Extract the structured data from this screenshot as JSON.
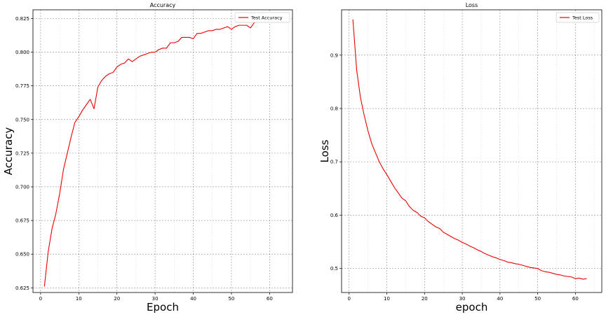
{
  "chart_data": [
    {
      "type": "line",
      "title": "Accuracy",
      "xlabel": "Epoch",
      "ylabel": "Accuracy",
      "xlim": [
        -2,
        66
      ],
      "ylim": [
        0.6215,
        0.8315
      ],
      "xticks": [
        0,
        10,
        20,
        30,
        40,
        50,
        60
      ],
      "xtick_labels": [
        "0",
        "10",
        "20",
        "30",
        "40",
        "50",
        "60"
      ],
      "yticks": [
        0.625,
        0.65,
        0.675,
        0.7,
        0.725,
        0.75,
        0.775,
        0.8,
        0.825
      ],
      "ytick_labels": [
        "0.625",
        "0.650",
        "0.675",
        "0.700",
        "0.725",
        "0.750",
        "0.775",
        "0.800",
        "0.825"
      ],
      "grid": true,
      "legend_position": "top-right",
      "series": [
        {
          "name": "Test Accuracy",
          "color": "#ee0000",
          "x": [
            1,
            2,
            3,
            4,
            5,
            6,
            7,
            8,
            9,
            10,
            11,
            12,
            13,
            14,
            15,
            16,
            17,
            18,
            19,
            20,
            21,
            22,
            23,
            24,
            25,
            26,
            27,
            28,
            29,
            30,
            31,
            32,
            33,
            34,
            35,
            36,
            37,
            38,
            39,
            40,
            41,
            42,
            43,
            44,
            45,
            46,
            47,
            48,
            49,
            50,
            51,
            52,
            53,
            54,
            55,
            56,
            57,
            58,
            59,
            60,
            61,
            62,
            63
          ],
          "values": [
            0.626,
            0.652,
            0.669,
            0.68,
            0.695,
            0.713,
            0.725,
            0.737,
            0.748,
            0.752,
            0.757,
            0.761,
            0.765,
            0.758,
            0.774,
            0.779,
            0.782,
            0.784,
            0.785,
            0.789,
            0.791,
            0.792,
            0.795,
            0.793,
            0.795,
            0.797,
            0.798,
            0.799,
            0.8,
            0.8,
            0.802,
            0.803,
            0.803,
            0.807,
            0.807,
            0.808,
            0.811,
            0.811,
            0.811,
            0.81,
            0.814,
            0.814,
            0.815,
            0.816,
            0.816,
            0.817,
            0.817,
            0.818,
            0.819,
            0.817,
            0.819,
            0.82,
            0.82,
            0.82,
            0.818,
            0.822,
            0.823,
            0.824,
            0.826,
            0.824,
            0.824,
            0.826,
            0.824
          ]
        }
      ]
    },
    {
      "type": "line",
      "title": "Loss",
      "xlabel": "epoch",
      "ylabel": "Loss",
      "xlim": [
        -2,
        67
      ],
      "ylim": [
        0.455,
        0.985
      ],
      "xticks": [
        0,
        10,
        20,
        30,
        40,
        50,
        60
      ],
      "xtick_labels": [
        "0",
        "10",
        "20",
        "30",
        "40",
        "50",
        "60"
      ],
      "yticks": [
        0.5,
        0.6,
        0.7,
        0.8,
        0.9
      ],
      "ytick_labels": [
        "0.5",
        "0.6",
        "0.7",
        "0.8",
        "0.9"
      ],
      "grid": true,
      "legend_position": "top-right",
      "series": [
        {
          "name": "Test Loss",
          "color": "#ee0000",
          "x": [
            1,
            2,
            3,
            4,
            5,
            6,
            7,
            8,
            9,
            10,
            11,
            12,
            13,
            14,
            15,
            16,
            17,
            18,
            19,
            20,
            21,
            22,
            23,
            24,
            25,
            26,
            27,
            28,
            29,
            30,
            31,
            32,
            33,
            34,
            35,
            36,
            37,
            38,
            39,
            40,
            41,
            42,
            43,
            44,
            45,
            46,
            47,
            48,
            49,
            50,
            51,
            52,
            53,
            54,
            55,
            56,
            57,
            58,
            59,
            60,
            61,
            62,
            63
          ],
          "values": [
            0.967,
            0.872,
            0.821,
            0.787,
            0.758,
            0.734,
            0.717,
            0.7,
            0.687,
            0.676,
            0.664,
            0.652,
            0.642,
            0.632,
            0.627,
            0.616,
            0.609,
            0.605,
            0.598,
            0.595,
            0.588,
            0.583,
            0.578,
            0.575,
            0.568,
            0.564,
            0.56,
            0.556,
            0.553,
            0.549,
            0.546,
            0.542,
            0.539,
            0.535,
            0.532,
            0.528,
            0.525,
            0.522,
            0.52,
            0.517,
            0.515,
            0.512,
            0.511,
            0.509,
            0.508,
            0.506,
            0.504,
            0.502,
            0.501,
            0.5,
            0.496,
            0.494,
            0.493,
            0.491,
            0.489,
            0.488,
            0.486,
            0.485,
            0.484,
            0.481,
            0.482,
            0.48,
            0.481
          ]
        }
      ]
    }
  ]
}
